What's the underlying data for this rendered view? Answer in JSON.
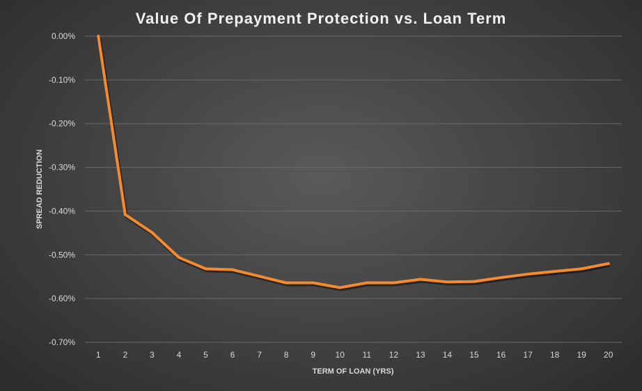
{
  "chart_data": {
    "type": "line",
    "title": "Value Of Prepayment Protection vs. Loan Term",
    "xlabel": "TERM OF LOAN (YRS)",
    "ylabel": "SPREAD REDUCTION",
    "x": [
      1,
      2,
      3,
      4,
      5,
      6,
      7,
      8,
      9,
      10,
      11,
      12,
      13,
      14,
      15,
      16,
      17,
      18,
      19,
      20
    ],
    "y_ticks": [
      "0.00%",
      "-0.10%",
      "-0.20%",
      "-0.30%",
      "-0.40%",
      "-0.50%",
      "-0.60%",
      "-0.70%"
    ],
    "ylim": [
      -0.7,
      0.0
    ],
    "grid": true,
    "legend": "none",
    "series": [
      {
        "values": [
          0.0,
          -0.408,
          -0.449,
          -0.506,
          -0.532,
          -0.534,
          -0.549,
          -0.564,
          -0.564,
          -0.575,
          -0.564,
          -0.564,
          -0.556,
          -0.562,
          -0.561,
          -0.552,
          -0.544,
          -0.538,
          -0.532,
          -0.52
        ],
        "color": "#f58a2f"
      }
    ],
    "background": "#4a4a4a"
  }
}
